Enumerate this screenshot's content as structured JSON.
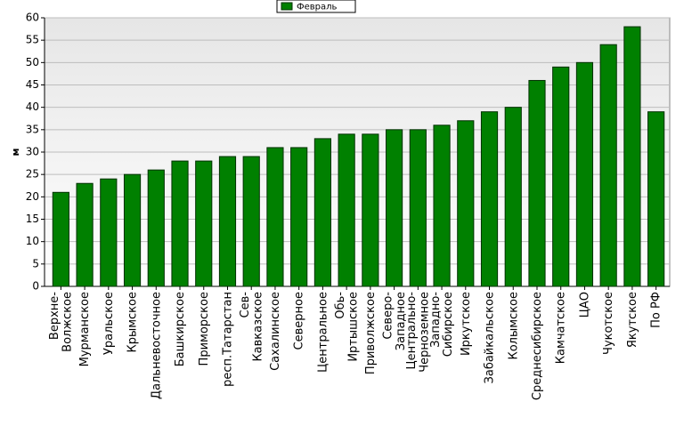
{
  "chart_data": {
    "type": "bar",
    "y_label": "м",
    "categories": [
      "Верхне-\nВолжское",
      "Мурманское",
      "Уральское",
      "Крымское",
      "Дальневосточное",
      "Башкирское",
      "Приморское",
      "респ.Татарстан",
      "Сев-\nКавказское",
      "Сахалинское",
      "Северное",
      "Центральное",
      "Обь-\nИртышское",
      "Приволжское",
      "Северо-\nЗападное",
      "Центрально-\nЧерноземное",
      "Западно-\nСибирское",
      "Иркутское",
      "Забайкальское",
      "Колымское",
      "Среднесибирское",
      "Камчатское",
      "ЦАО",
      "Чукотское",
      "Якутское",
      "По РФ"
    ],
    "series": [
      {
        "name": "Февраль",
        "color": "#008000",
        "values": [
          21,
          23,
          24,
          25,
          26,
          28,
          28,
          29,
          29,
          31,
          31,
          33,
          34,
          34,
          35,
          35,
          36,
          37,
          39,
          40,
          46,
          49,
          50,
          54,
          58,
          39
        ]
      }
    ],
    "ylim": [
      0,
      60
    ],
    "yticks": [
      0,
      5,
      10,
      15,
      20,
      25,
      30,
      35,
      40,
      45,
      50,
      55,
      60
    ],
    "grid": true,
    "legend": "top"
  }
}
